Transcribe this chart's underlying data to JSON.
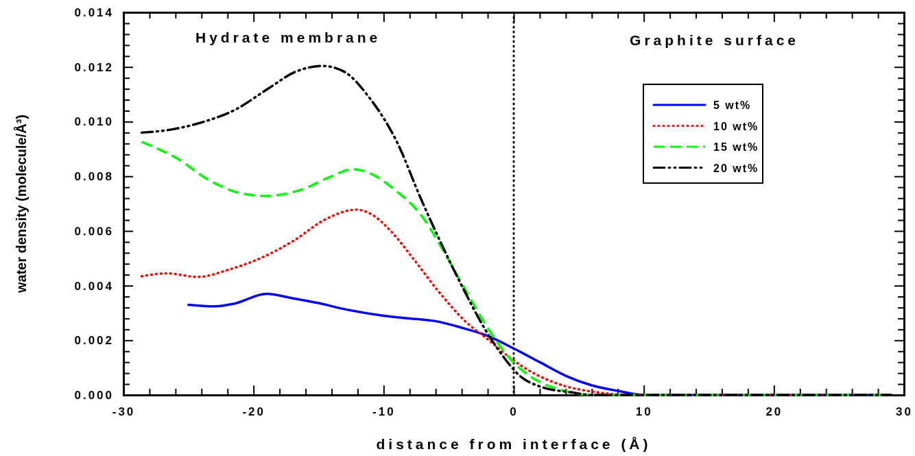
{
  "chart_data": {
    "type": "line",
    "xlabel": "distance from interface (Å)",
    "ylabel": "water density (molecule/Å³)",
    "annotations": [
      "Hydrate membrane",
      "Graphite surface"
    ],
    "xlim": [
      -30,
      30
    ],
    "xticks": [
      -30,
      {
        "value": -28,
        "label": null
      },
      {
        "value": -26,
        "label": null
      },
      {
        "value": -24,
        "label": null
      },
      {
        "value": -22,
        "label": null
      },
      -20,
      {
        "value": -18,
        "label": null
      },
      {
        "value": -16,
        "label": null
      },
      {
        "value": -14,
        "label": null
      },
      {
        "value": -12,
        "label": null
      },
      -10,
      {
        "value": -8,
        "label": null
      },
      {
        "value": -6,
        "label": null
      },
      {
        "value": -4,
        "label": null
      },
      {
        "value": -2,
        "label": null
      },
      0,
      {
        "value": 2,
        "label": null
      },
      {
        "value": 4,
        "label": null
      },
      {
        "value": 6,
        "label": null
      },
      {
        "value": 8,
        "label": null
      },
      10,
      {
        "value": 12,
        "label": null
      },
      {
        "value": 14,
        "label": null
      },
      {
        "value": 16,
        "label": null
      },
      {
        "value": 18,
        "label": null
      },
      20,
      {
        "value": 22,
        "label": null
      },
      {
        "value": 24,
        "label": null
      },
      {
        "value": 26,
        "label": null
      },
      {
        "value": 28,
        "label": null
      },
      30
    ],
    "ylim": [
      0,
      0.014
    ],
    "yticks": [
      {
        "value": 0,
        "label": "0.000"
      },
      {
        "value": 0.0004,
        "label": null
      },
      {
        "value": 0.0008,
        "label": null
      },
      {
        "value": 0.0012,
        "label": null
      },
      {
        "value": 0.0016,
        "label": null
      },
      {
        "value": 0.002,
        "label": "0.002"
      },
      {
        "value": 0.0024,
        "label": null
      },
      {
        "value": 0.0028,
        "label": null
      },
      {
        "value": 0.0032,
        "label": null
      },
      {
        "value": 0.0036,
        "label": null
      },
      {
        "value": 0.004,
        "label": "0.004"
      },
      {
        "value": 0.0044,
        "label": null
      },
      {
        "value": 0.0048,
        "label": null
      },
      {
        "value": 0.0052,
        "label": null
      },
      {
        "value": 0.0056,
        "label": null
      },
      {
        "value": 0.006,
        "label": "0.006"
      },
      {
        "value": 0.0064,
        "label": null
      },
      {
        "value": 0.0068,
        "label": null
      },
      {
        "value": 0.0072,
        "label": null
      },
      {
        "value": 0.0076,
        "label": null
      },
      {
        "value": 0.008,
        "label": "0.008"
      },
      {
        "value": 0.0084,
        "label": null
      },
      {
        "value": 0.0088,
        "label": null
      },
      {
        "value": 0.0092,
        "label": null
      },
      {
        "value": 0.0096,
        "label": null
      },
      {
        "value": 0.01,
        "label": "0.010"
      },
      {
        "value": 0.0104,
        "label": null
      },
      {
        "value": 0.0108,
        "label": null
      },
      {
        "value": 0.0112,
        "label": null
      },
      {
        "value": 0.0116,
        "label": null
      },
      {
        "value": 0.012,
        "label": "0.012"
      },
      {
        "value": 0.0124,
        "label": null
      },
      {
        "value": 0.0128,
        "label": null
      },
      {
        "value": 0.0132,
        "label": null
      },
      {
        "value": 0.0136,
        "label": null
      },
      {
        "value": 0.014,
        "label": "0.014"
      }
    ],
    "grid": false,
    "legend": "top right",
    "marker": "none",
    "ref_lines": [
      {
        "axis": "x",
        "value": 0,
        "color": "#000000",
        "line_style": "dotted"
      }
    ],
    "series": [
      {
        "name": "5 wt%",
        "color": "#0000ff",
        "line_style": "solid",
        "x": [
          -25,
          -23,
          -21.5,
          -19,
          -17,
          -15,
          -13,
          -10,
          -8,
          -6,
          -4,
          -2,
          0,
          2,
          4,
          6,
          8,
          10,
          12,
          29
        ],
        "values": [
          0.0033,
          0.00324,
          0.00334,
          0.0037,
          0.00354,
          0.00336,
          0.00314,
          0.0029,
          0.0028,
          0.0027,
          0.00246,
          0.00216,
          0.0017,
          0.0012,
          0.0007,
          0.00035,
          0.00015,
          0,
          0,
          0
        ]
      },
      {
        "name": "10 wt%",
        "color": "#ff0000",
        "line_style": "dotted",
        "x": [
          -28.6,
          -26.7,
          -24.3,
          -21.8,
          -19.3,
          -16.9,
          -14.5,
          -12.1,
          -10.9,
          -9.4,
          -7.7,
          -5.7,
          -3.8,
          -1.8,
          -0.2,
          1.6,
          3.9,
          6.4,
          9,
          29
        ],
        "values": [
          0.00434,
          0.00445,
          0.00432,
          0.0046,
          0.00504,
          0.00565,
          0.00642,
          0.00678,
          0.0066,
          0.00597,
          0.00497,
          0.00374,
          0.00273,
          0.00196,
          0.00133,
          0.00078,
          0.00033,
          0.0001,
          0,
          0
        ]
      },
      {
        "name": "15 wt%",
        "color": "#00ff00",
        "line_style": "dashed",
        "x": [
          -28.6,
          -25.8,
          -23.5,
          -21,
          -19.1,
          -16.4,
          -14,
          -12.4,
          -10.6,
          -9.4,
          -7,
          -5.2,
          -3.5,
          -1.7,
          -0.1,
          1.6,
          3.9,
          6,
          8,
          29
        ],
        "values": [
          0.00926,
          0.00863,
          0.00788,
          0.00738,
          0.00728,
          0.0075,
          0.008,
          0.00826,
          0.008,
          0.0076,
          0.0065,
          0.0051,
          0.00366,
          0.00223,
          0.00123,
          0.00058,
          0.00015,
          0,
          0,
          0
        ]
      },
      {
        "name": "20 wt%",
        "color": "#000000",
        "line_style": "dashdotdot",
        "x": [
          -28.6,
          -26.5,
          -23.8,
          -21.4,
          -18.9,
          -16.8,
          -14.7,
          -13,
          -11.2,
          -8.9,
          -7.2,
          -5.7,
          -4,
          -2.2,
          -0.8,
          0.4,
          2.2,
          4.4,
          6,
          29
        ],
        "values": [
          0.0096,
          0.0097,
          0.01,
          0.01044,
          0.0112,
          0.01182,
          0.01204,
          0.01182,
          0.01094,
          0.00918,
          0.00725,
          0.00567,
          0.004,
          0.0024,
          0.0014,
          0.00073,
          0.00028,
          0.0001,
          0,
          0
        ]
      }
    ]
  }
}
